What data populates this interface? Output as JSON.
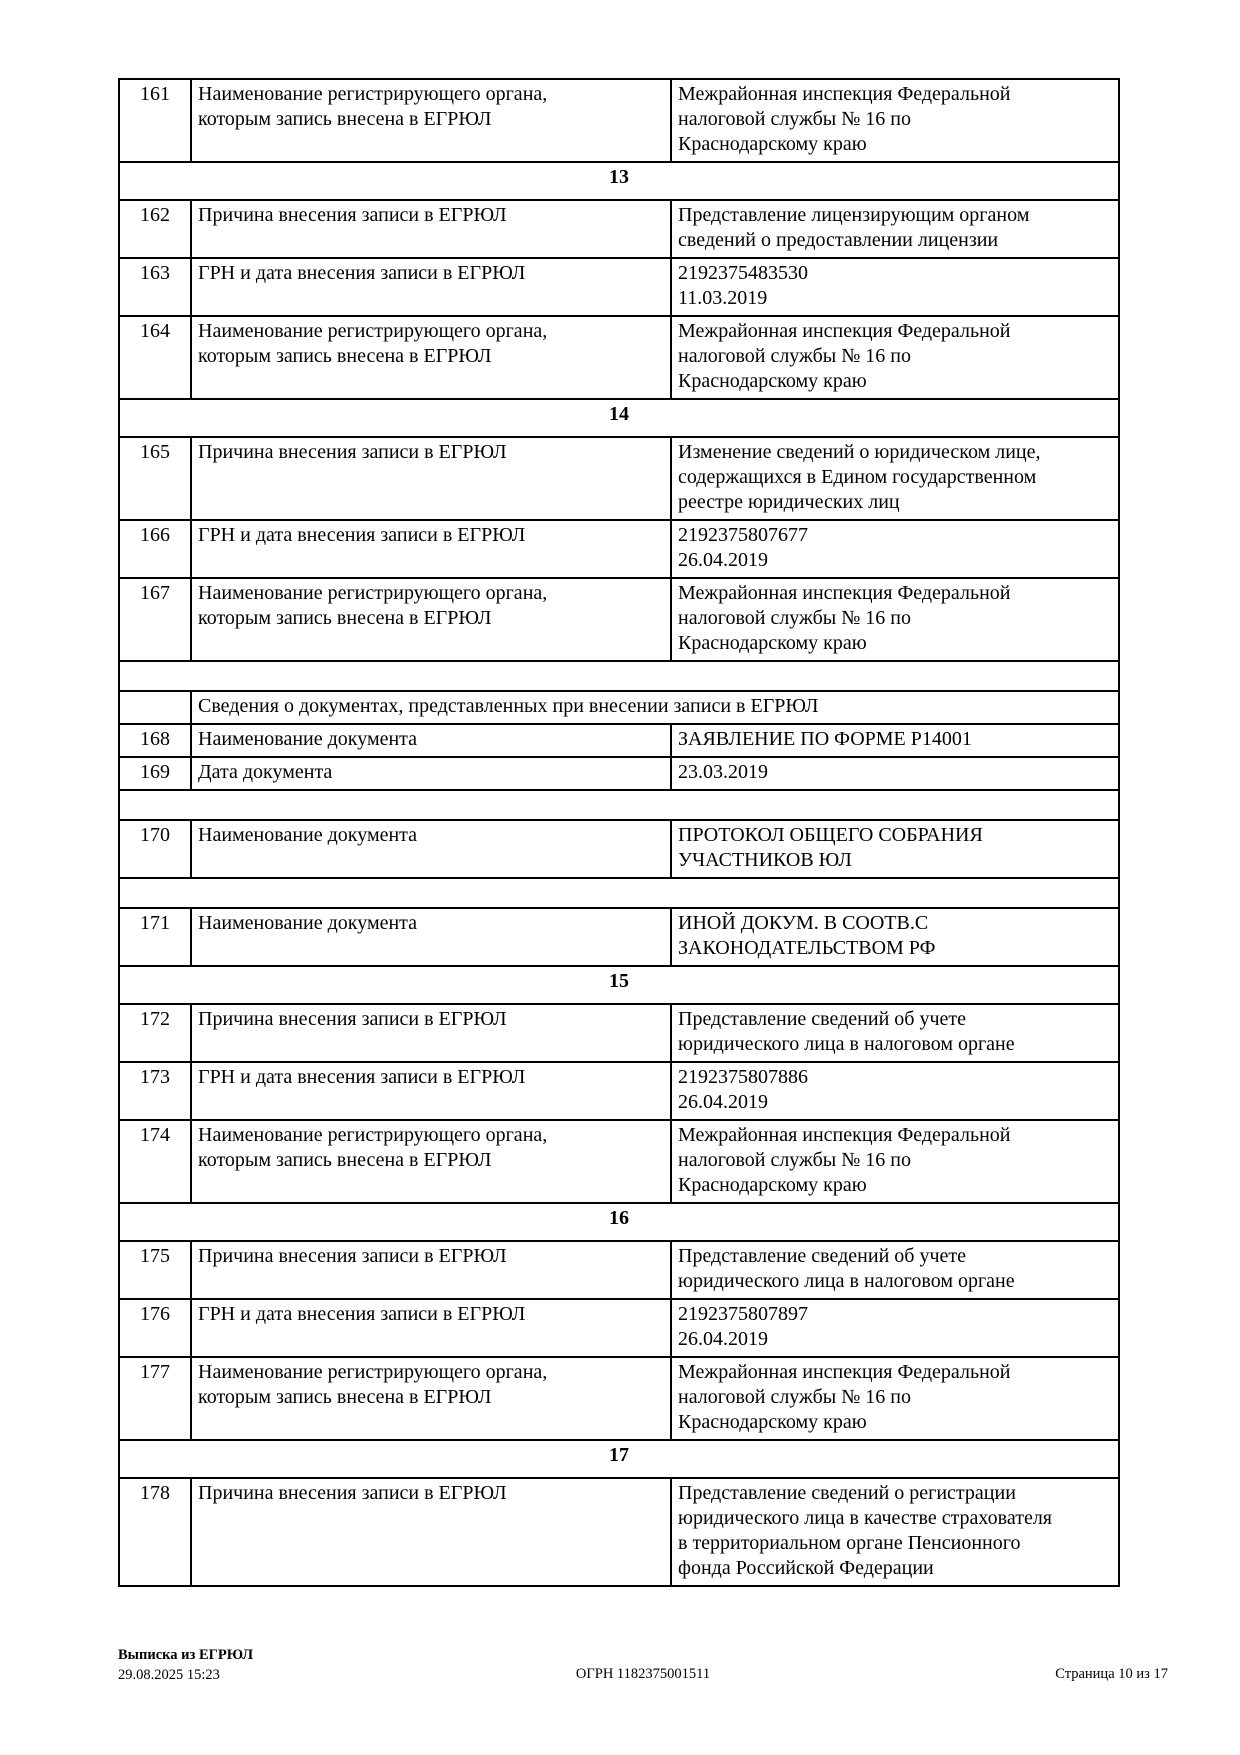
{
  "rows": [
    {
      "type": "entry",
      "num": "161",
      "attr": "Наименование регистрирующего органа,\nкоторым запись внесена в ЕГРЮЛ",
      "value": "Межрайонная инспекция Федеральной\nналоговой службы № 16 по\nКраснодарскому краю"
    },
    {
      "type": "section",
      "label": "13"
    },
    {
      "type": "entry",
      "num": "162",
      "attr": "Причина внесения записи в ЕГРЮЛ",
      "value": "Представление лицензирующим органом\nсведений о предоставлении лицензии"
    },
    {
      "type": "entry",
      "num": "163",
      "attr": "ГРН и дата внесения записи в ЕГРЮЛ",
      "value": "2192375483530\n11.03.2019"
    },
    {
      "type": "entry",
      "num": "164",
      "attr": "Наименование регистрирующего органа,\nкоторым запись внесена в ЕГРЮЛ",
      "value": "Межрайонная инспекция Федеральной\nналоговой службы № 16 по\nКраснодарскому краю"
    },
    {
      "type": "section",
      "label": "14"
    },
    {
      "type": "entry",
      "num": "165",
      "attr": "Причина внесения записи в ЕГРЮЛ",
      "value": "Изменение сведений о юридическом лице,\nсодержащихся в Едином государственном\nреестре юридических лиц"
    },
    {
      "type": "entry",
      "num": "166",
      "attr": "ГРН и дата внесения записи в ЕГРЮЛ",
      "value": "2192375807677\n26.04.2019"
    },
    {
      "type": "entry",
      "num": "167",
      "attr": "Наименование регистрирующего органа,\nкоторым запись внесена в ЕГРЮЛ",
      "value": "Межрайонная инспекция Федеральной\nналоговой службы № 16 по\nКраснодарскому краю"
    },
    {
      "type": "spacer"
    },
    {
      "type": "subheader",
      "label": "Сведения о документах, представленных при внесении записи в ЕГРЮЛ"
    },
    {
      "type": "entry",
      "num": "168",
      "attr": "Наименование документа",
      "value": "ЗАЯВЛЕНИЕ ПО ФОРМЕ Р14001"
    },
    {
      "type": "entry",
      "num": "169",
      "attr": "Дата документа",
      "value": "23.03.2019"
    },
    {
      "type": "spacer"
    },
    {
      "type": "entry",
      "num": "170",
      "attr": "Наименование документа",
      "value": "ПРОТОКОЛ ОБЩЕГО СОБРАНИЯ\nУЧАСТНИКОВ ЮЛ"
    },
    {
      "type": "spacer"
    },
    {
      "type": "entry",
      "num": "171",
      "attr": "Наименование документа",
      "value": "ИНОЙ ДОКУМ. В СООТВ.С\nЗАКОНОДАТЕЛЬСТВОМ РФ"
    },
    {
      "type": "section",
      "label": "15"
    },
    {
      "type": "entry",
      "num": "172",
      "attr": "Причина внесения записи в ЕГРЮЛ",
      "value": "Представление сведений об учете\nюридического лица в налоговом органе"
    },
    {
      "type": "entry",
      "num": "173",
      "attr": "ГРН и дата внесения записи в ЕГРЮЛ",
      "value": "2192375807886\n26.04.2019"
    },
    {
      "type": "entry",
      "num": "174",
      "attr": "Наименование регистрирующего органа,\nкоторым запись внесена в ЕГРЮЛ",
      "value": "Межрайонная инспекция Федеральной\nналоговой службы № 16 по\nКраснодарскому краю"
    },
    {
      "type": "section",
      "label": "16"
    },
    {
      "type": "entry",
      "num": "175",
      "attr": "Причина внесения записи в ЕГРЮЛ",
      "value": "Представление сведений об учете\nюридического лица в налоговом органе"
    },
    {
      "type": "entry",
      "num": "176",
      "attr": "ГРН и дата внесения записи в ЕГРЮЛ",
      "value": "2192375807897\n26.04.2019"
    },
    {
      "type": "entry",
      "num": "177",
      "attr": "Наименование регистрирующего органа,\nкоторым запись внесена в ЕГРЮЛ",
      "value": "Межрайонная инспекция Федеральной\nналоговой службы № 16 по\nКраснодарскому краю"
    },
    {
      "type": "section",
      "label": "17"
    },
    {
      "type": "entry",
      "num": "178",
      "attr": "Причина внесения записи в ЕГРЮЛ",
      "value": "Представление сведений о регистрации\nюридического лица в качестве страхователя\nв территориальном органе Пенсионного\nфонда Российской Федерации"
    }
  ],
  "footer": {
    "doc_type": "Выписка из ЕГРЮЛ",
    "datetime": "29.08.2025 15:23",
    "ogrn": "ОГРН 1182375001511",
    "page": "Страница 10 из 17"
  },
  "colors": {
    "text": "#000000",
    "border": "#000000",
    "background": "#ffffff"
  }
}
